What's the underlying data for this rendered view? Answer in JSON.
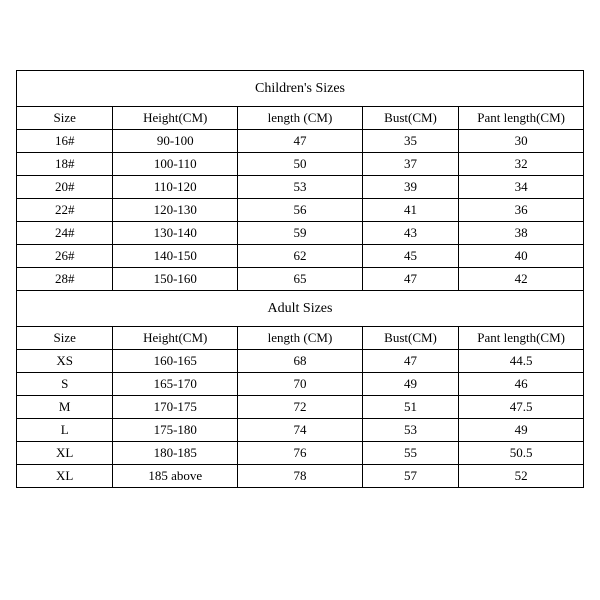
{
  "table": {
    "border_color": "#000000",
    "background_color": "#ffffff",
    "text_color": "#000000",
    "font_family": "SimSun",
    "cell_fontsize": 13,
    "title_fontsize": 14,
    "columns": [
      {
        "key": "size",
        "width_pct": 17
      },
      {
        "key": "height",
        "width_pct": 22
      },
      {
        "key": "length",
        "width_pct": 22
      },
      {
        "key": "bust",
        "width_pct": 17
      },
      {
        "key": "pant",
        "width_pct": 22
      }
    ],
    "sections": [
      {
        "title": "Children's Sizes",
        "headers": [
          "Size",
          "Height(CM)",
          "length (CM)",
          "Bust(CM)",
          "Pant length(CM)"
        ],
        "rows": [
          [
            "16#",
            "90-100",
            "47",
            "35",
            "30"
          ],
          [
            "18#",
            "100-110",
            "50",
            "37",
            "32"
          ],
          [
            "20#",
            "110-120",
            "53",
            "39",
            "34"
          ],
          [
            "22#",
            "120-130",
            "56",
            "41",
            "36"
          ],
          [
            "24#",
            "130-140",
            "59",
            "43",
            "38"
          ],
          [
            "26#",
            "140-150",
            "62",
            "45",
            "40"
          ],
          [
            "28#",
            "150-160",
            "65",
            "47",
            "42"
          ]
        ]
      },
      {
        "title": "Adult Sizes",
        "headers": [
          "Size",
          "Height(CM)",
          "length (CM)",
          "Bust(CM)",
          "Pant length(CM)"
        ],
        "rows": [
          [
            "XS",
            "160-165",
            "68",
            "47",
            "44.5"
          ],
          [
            "S",
            "165-170",
            "70",
            "49",
            "46"
          ],
          [
            "M",
            "170-175",
            "72",
            "51",
            "47.5"
          ],
          [
            "L",
            "175-180",
            "74",
            "53",
            "49"
          ],
          [
            "XL",
            "180-185",
            "76",
            "55",
            "50.5"
          ],
          [
            "XL",
            "185 above",
            "78",
            "57",
            "52"
          ]
        ]
      }
    ]
  }
}
